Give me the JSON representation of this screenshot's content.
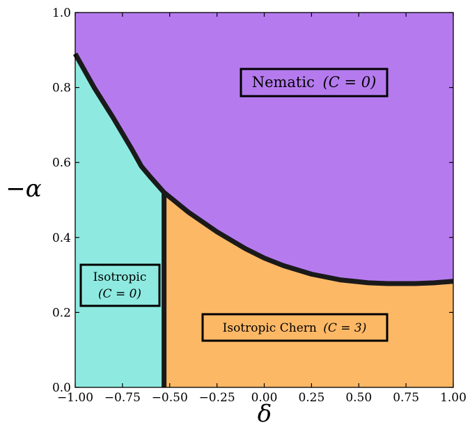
{
  "chart_data": {
    "type": "area",
    "title": "",
    "xlabel": "δ",
    "ylabel": "−α",
    "xlim": [
      -1.0,
      1.0
    ],
    "ylim": [
      0.0,
      1.0
    ],
    "x_ticks": [
      "−1.00",
      "−0.75",
      "−0.50",
      "−0.25",
      "0.00",
      "0.25",
      "0.50",
      "0.75",
      "1.00"
    ],
    "y_ticks": [
      "0.0",
      "0.2",
      "0.4",
      "0.6",
      "0.8",
      "1.0"
    ],
    "colors": {
      "nematic": "#b57bee",
      "isotropic": "#8eeae0",
      "chern": "#fdb866",
      "boundary": "#1a1a1a"
    },
    "boundaries": [
      {
        "between": "isotropic / nematic",
        "x": [
          -1.0,
          -0.9,
          -0.8,
          -0.7,
          -0.65,
          -0.6,
          -0.53
        ],
        "y": [
          0.89,
          0.8,
          0.72,
          0.635,
          0.59,
          0.56,
          0.52
        ]
      },
      {
        "between": "chern / nematic",
        "x": [
          -0.53,
          -0.4,
          -0.25,
          -0.1,
          0.0,
          0.1,
          0.25,
          0.4,
          0.55,
          0.65,
          0.75,
          0.8,
          0.9,
          1.0
        ],
        "y": [
          0.52,
          0.467,
          0.415,
          0.37,
          0.345,
          0.325,
          0.302,
          0.287,
          0.279,
          0.277,
          0.277,
          0.277,
          0.279,
          0.283
        ]
      },
      {
        "between": "isotropic / chern",
        "x": [
          -0.53,
          -0.53
        ],
        "y": [
          0.0,
          0.52
        ]
      }
    ],
    "regions": [
      {
        "id": "nematic",
        "label": "Nematic",
        "c_label": "(C = 0)"
      },
      {
        "id": "isotropic",
        "label": "Isotropic",
        "c_label": "(C = 0)"
      },
      {
        "id": "chern",
        "label": "Isotropic Chern",
        "c_label": "(C = 3)"
      }
    ]
  }
}
